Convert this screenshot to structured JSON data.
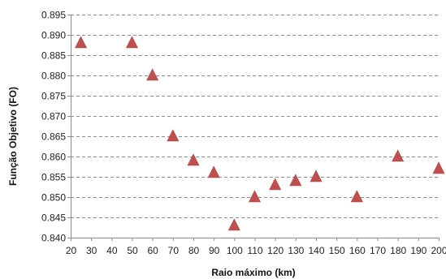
{
  "chart_data": {
    "type": "scatter",
    "title": "",
    "xlabel": "Raio máximo (km)",
    "ylabel": "Função Objetivo (FO)",
    "xlim": [
      20,
      200
    ],
    "ylim": [
      0.84,
      0.895
    ],
    "x_ticks": [
      20,
      30,
      40,
      50,
      60,
      70,
      80,
      90,
      100,
      110,
      120,
      130,
      140,
      150,
      160,
      170,
      180,
      190,
      200
    ],
    "y_ticks": [
      0.84,
      0.845,
      0.85,
      0.855,
      0.86,
      0.865,
      0.87,
      0.875,
      0.88,
      0.885,
      0.89,
      0.895
    ],
    "x_tick_labels": [
      "20",
      "30",
      "40",
      "50",
      "60",
      "70",
      "80",
      "90",
      "100",
      "110",
      "120",
      "130",
      "140",
      "150",
      "160",
      "170",
      "180",
      "190",
      "200"
    ],
    "y_tick_labels": [
      "0.840",
      "0.845",
      "0.850",
      "0.855",
      "0.860",
      "0.865",
      "0.870",
      "0.875",
      "0.880",
      "0.885",
      "0.890",
      "0.895"
    ],
    "grid": "horizontal dashed",
    "marker": "triangle",
    "marker_color": "#c0504d",
    "grid_color": "#8c8c8c",
    "series": [
      {
        "points": [
          {
            "x": 25,
            "y": 0.888
          },
          {
            "x": 50,
            "y": 0.888
          },
          {
            "x": 60,
            "y": 0.88
          },
          {
            "x": 70,
            "y": 0.865
          },
          {
            "x": 80,
            "y": 0.859
          },
          {
            "x": 90,
            "y": 0.856
          },
          {
            "x": 100,
            "y": 0.843
          },
          {
            "x": 110,
            "y": 0.85
          },
          {
            "x": 120,
            "y": 0.853
          },
          {
            "x": 130,
            "y": 0.854
          },
          {
            "x": 140,
            "y": 0.855
          },
          {
            "x": 160,
            "y": 0.85
          },
          {
            "x": 180,
            "y": 0.86
          },
          {
            "x": 200,
            "y": 0.857
          }
        ]
      }
    ]
  }
}
